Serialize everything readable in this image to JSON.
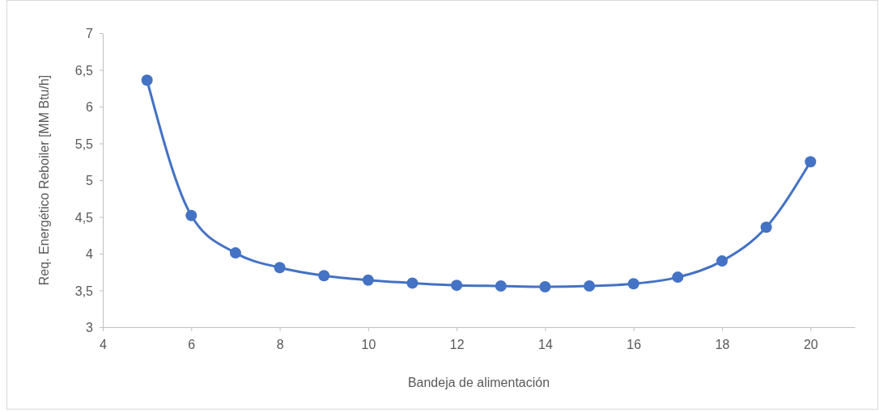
{
  "chart_data": {
    "type": "line",
    "xlabel": "Bandeja de alimentación",
    "ylabel": "Req. Energético Reboiler [MM Btu/h]",
    "x": [
      5,
      6,
      7,
      8,
      9,
      10,
      11,
      12,
      13,
      14,
      15,
      16,
      17,
      18,
      19,
      20
    ],
    "series": [
      {
        "color": "#4472c4",
        "values": [
          6.36,
          4.52,
          4.01,
          3.81,
          3.7,
          3.64,
          3.6,
          3.57,
          3.56,
          3.55,
          3.56,
          3.59,
          3.68,
          3.9,
          4.36,
          5.25
        ]
      }
    ],
    "xlim": [
      4,
      21
    ],
    "xticks": [
      4,
      6,
      8,
      10,
      12,
      14,
      16,
      18,
      20
    ],
    "ylim": [
      3,
      7
    ],
    "yticks": [
      3,
      {
        "value": 3.5,
        "label": "3,5"
      },
      4,
      {
        "value": 4.5,
        "label": "4,5"
      },
      5,
      {
        "value": 5.5,
        "label": "5,5"
      },
      6,
      {
        "value": 6.5,
        "label": "6,5"
      },
      7
    ],
    "grid": false,
    "marker": "circle",
    "line_style": "solid"
  }
}
